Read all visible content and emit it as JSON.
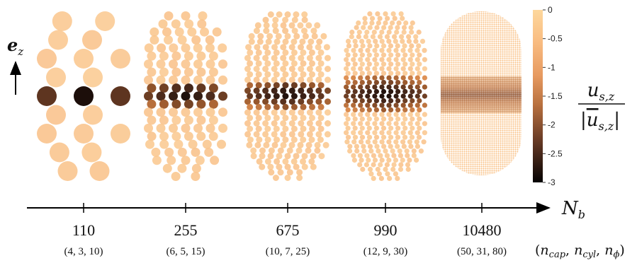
{
  "ez_label": {
    "base": "e",
    "sub": "z"
  },
  "axis_label": {
    "base": "N",
    "sub": "b"
  },
  "tuple_header": "(n_cap, n_cyl, n_ϕ)",
  "tuple_header_parts": {
    "open": "(",
    "a": "n",
    "a_sub": "cap",
    "b": "n",
    "b_sub": "cyl",
    "c": "n",
    "c_sub": "ϕ",
    "close": ")"
  },
  "colorbar": {
    "fraction": {
      "num_base": "u",
      "num_sub": "s,z",
      "den_base": "u",
      "den_sub": "s,z"
    },
    "ticks": [
      "0",
      "-0.5",
      "-1",
      "-1.5",
      "-2",
      "-2.5",
      "-3"
    ],
    "min": -3,
    "max": 0,
    "colors": [
      "#0c0504",
      "#4a2a1c",
      "#9c5a2e",
      "#d98a4e",
      "#f6b37a",
      "#fdd79c"
    ]
  },
  "panels": [
    {
      "nb": "110",
      "tuple": "(4, 3, 10)"
    },
    {
      "nb": "255",
      "tuple": "(6, 5, 15)"
    },
    {
      "nb": "675",
      "tuple": "(10, 7, 25)"
    },
    {
      "nb": "990",
      "tuple": "(12, 9, 30)"
    },
    {
      "nb": "10480",
      "tuple": "(50, 31, 80)"
    }
  ]
}
